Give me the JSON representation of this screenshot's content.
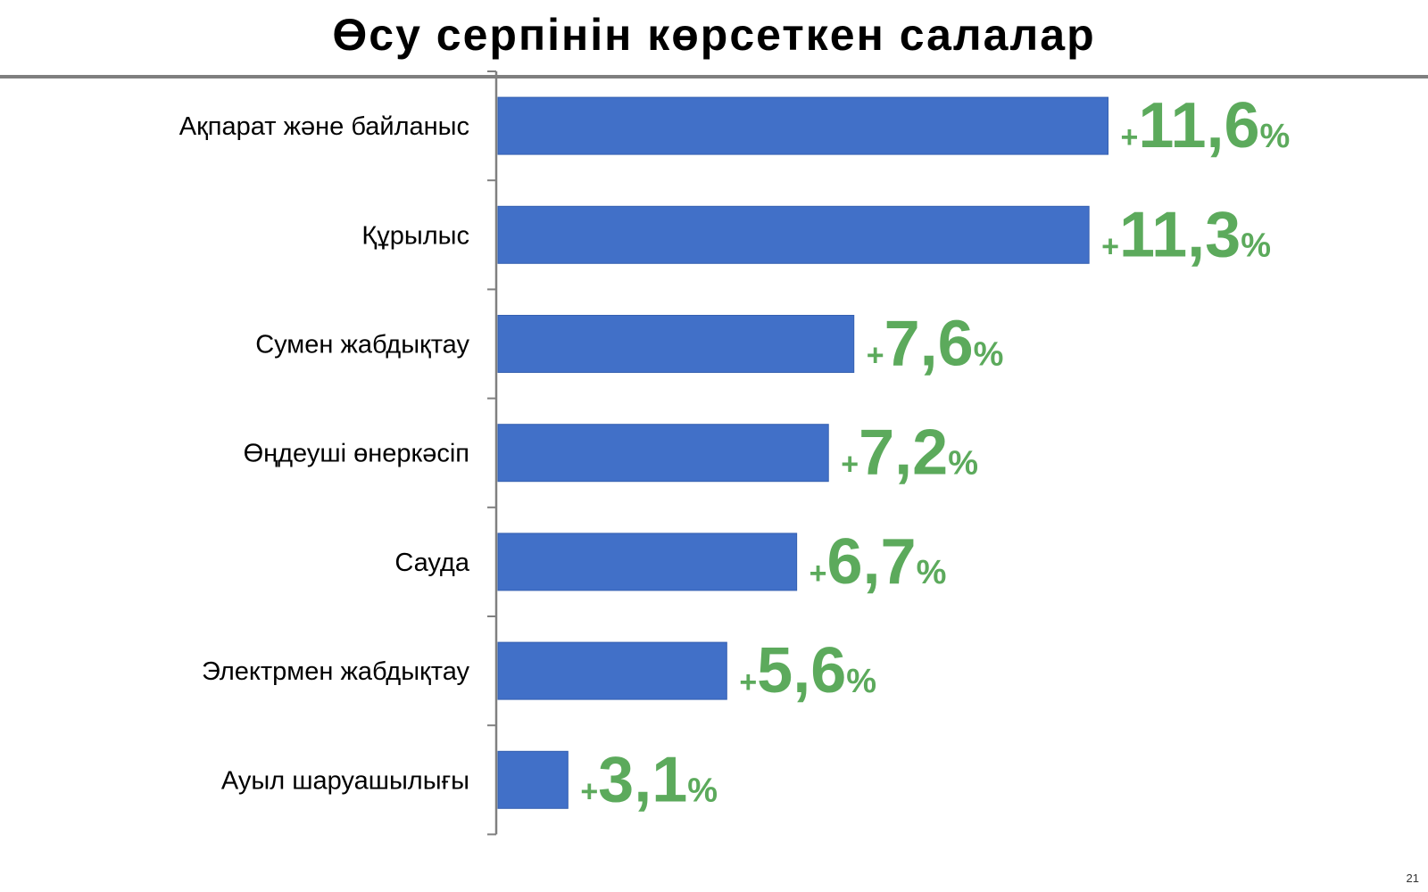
{
  "title": "Өсу серпінін көрсеткен салалар",
  "page_number": "21",
  "colors": {
    "bar": "#4170C8",
    "label": "#5CAA5C",
    "axis": "#808080"
  },
  "chart_data": {
    "type": "bar",
    "orientation": "horizontal",
    "title": "Өсу серпінін көрсеткен салалар",
    "categories": [
      "Ақпарат және байланыс",
      "Құрылыс",
      "Сумен жабдықтау",
      "Өңдеуші өнеркәсіп",
      "Сауда",
      "Электрмен жабдықтау",
      "Ауыл шаруашылығы"
    ],
    "values": [
      11.6,
      11.3,
      7.6,
      7.2,
      6.7,
      5.6,
      3.1
    ],
    "data_labels": [
      "11,6",
      "11,3",
      "7,6",
      "7,2",
      "6,7",
      "5,6",
      "3,1"
    ],
    "label_prefix": "+",
    "label_suffix": "%",
    "xlim": [
      2,
      14
    ],
    "grid": false,
    "xlabel": "",
    "ylabel": ""
  }
}
